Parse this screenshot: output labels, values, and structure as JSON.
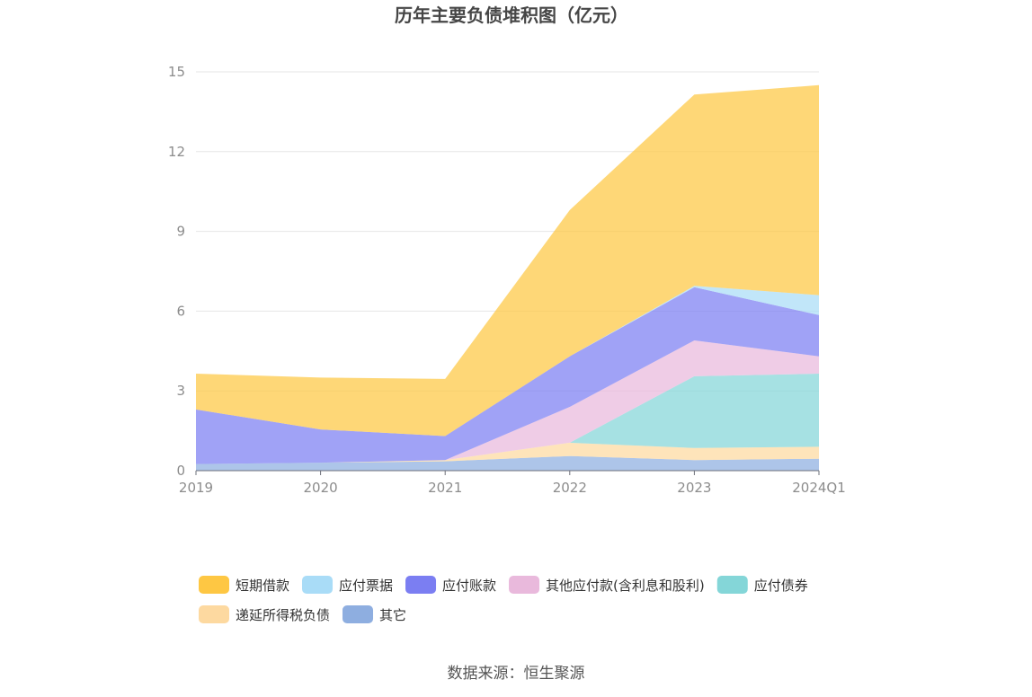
{
  "chart_data": {
    "type": "area",
    "stacked": true,
    "title": "历年主要负债堆积图（亿元）",
    "categories": [
      "2019",
      "2020",
      "2021",
      "2022",
      "2023",
      "2024Q1"
    ],
    "ylim": [
      0,
      15
    ],
    "yticks": [
      "0",
      "3",
      "6",
      "9",
      "12",
      "15"
    ],
    "grid": true,
    "legend_position": "bottom",
    "series": [
      {
        "name": "其它",
        "color": "#8eaee0",
        "values": [
          0.25,
          0.3,
          0.35,
          0.55,
          0.4,
          0.45
        ]
      },
      {
        "name": "递延所得税负债",
        "color": "#fdd9a0",
        "values": [
          0.0,
          0.0,
          0.05,
          0.5,
          0.45,
          0.45
        ]
      },
      {
        "name": "应付债券",
        "color": "#84d6d8",
        "values": [
          0.0,
          0.0,
          0.0,
          0.0,
          2.7,
          2.75
        ]
      },
      {
        "name": "其他应付款(含利息和股利)",
        "color": "#e9b9dc",
        "values": [
          0.0,
          0.0,
          0.0,
          1.35,
          1.35,
          0.65
        ]
      },
      {
        "name": "应付账款",
        "color": "#7b7ef2",
        "values": [
          2.05,
          1.25,
          0.9,
          1.9,
          2.0,
          1.55
        ]
      },
      {
        "name": "应付票据",
        "color": "#a9dcf7",
        "values": [
          0.0,
          0.0,
          0.0,
          0.0,
          0.05,
          0.75
        ]
      },
      {
        "name": "短期借款",
        "color": "#fec743",
        "values": [
          1.35,
          1.95,
          2.15,
          5.5,
          7.2,
          7.9
        ]
      }
    ],
    "legend_order": [
      "短期借款",
      "应付票据",
      "应付账款",
      "其他应付款(含利息和股利)",
      "应付债券",
      "递延所得税负债",
      "其它"
    ]
  },
  "source_text": "数据来源：恒生聚源"
}
